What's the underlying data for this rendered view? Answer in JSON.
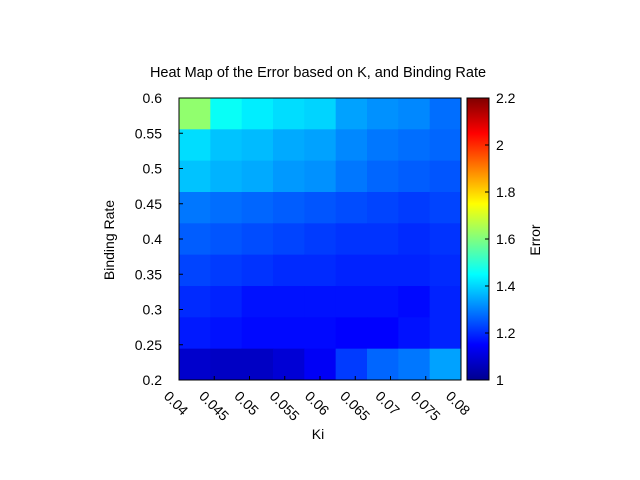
{
  "chart_data": {
    "type": "heatmap",
    "title": "Heat Map of the Error based on K, and Binding Rate",
    "xlabel": "Ki",
    "ylabel": "Binding Rate",
    "x_ticks": [
      "0.04",
      "0.045",
      "0.05",
      "0.055",
      "0.06",
      "0.065",
      "0.07",
      "0.075",
      "0.08"
    ],
    "y_ticks": [
      "0.2",
      "0.25",
      "0.3",
      "0.35",
      "0.4",
      "0.45",
      "0.5",
      "0.55",
      "0.6"
    ],
    "colorbar": {
      "label": "Error",
      "range": [
        1.0,
        2.2
      ],
      "ticks": [
        "1",
        "1.2",
        "1.4",
        "1.6",
        "1.8",
        "2",
        "2.2"
      ],
      "colormap": "jet"
    },
    "grid": false,
    "x": [
      0.04,
      0.045,
      0.05,
      0.055,
      0.06,
      0.065,
      0.07,
      0.075,
      0.08
    ],
    "y": [
      0.6,
      0.55,
      0.5,
      0.45,
      0.4,
      0.35,
      0.3,
      0.25,
      0.2
    ],
    "values": [
      [
        1.62,
        1.46,
        1.43,
        1.41,
        1.4,
        1.34,
        1.32,
        1.31,
        1.28
      ],
      [
        1.41,
        1.38,
        1.37,
        1.35,
        1.34,
        1.31,
        1.29,
        1.28,
        1.27
      ],
      [
        1.38,
        1.36,
        1.35,
        1.33,
        1.32,
        1.29,
        1.27,
        1.26,
        1.25
      ],
      [
        1.29,
        1.28,
        1.27,
        1.26,
        1.25,
        1.24,
        1.23,
        1.22,
        1.23
      ],
      [
        1.26,
        1.25,
        1.24,
        1.23,
        1.22,
        1.21,
        1.21,
        1.2,
        1.21
      ],
      [
        1.23,
        1.22,
        1.21,
        1.2,
        1.2,
        1.19,
        1.19,
        1.19,
        1.2
      ],
      [
        1.2,
        1.19,
        1.17,
        1.17,
        1.17,
        1.17,
        1.17,
        1.16,
        1.19
      ],
      [
        1.18,
        1.17,
        1.16,
        1.16,
        1.16,
        1.15,
        1.15,
        1.17,
        1.19
      ],
      [
        1.09,
        1.08,
        1.08,
        1.1,
        1.14,
        1.22,
        1.27,
        1.29,
        1.34
      ]
    ]
  }
}
